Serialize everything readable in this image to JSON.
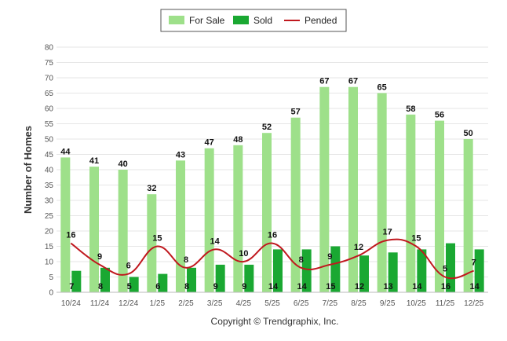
{
  "chart_data": {
    "type": "bar",
    "categories": [
      "10/24",
      "11/24",
      "12/24",
      "1/25",
      "2/25",
      "3/25",
      "4/25",
      "5/25",
      "6/25",
      "7/25",
      "8/25",
      "9/25",
      "10/25",
      "11/25",
      "12/25"
    ],
    "series": [
      {
        "name": "For Sale",
        "type": "bar",
        "color": "#9ee08a",
        "values": [
          44,
          41,
          40,
          32,
          43,
          47,
          48,
          52,
          57,
          67,
          67,
          65,
          58,
          56,
          50
        ]
      },
      {
        "name": "Sold",
        "type": "bar",
        "color": "#1aa832",
        "values": [
          7,
          8,
          5,
          6,
          8,
          9,
          9,
          14,
          14,
          15,
          12,
          13,
          14,
          16,
          14
        ]
      },
      {
        "name": "Pended",
        "type": "line",
        "color": "#c0181e",
        "values": [
          16,
          9,
          6,
          15,
          8,
          14,
          10,
          16,
          8,
          9,
          12,
          17,
          15,
          5,
          7
        ]
      }
    ],
    "ylabel": "Number of Homes",
    "xlabel": "",
    "ylim": [
      0,
      80
    ],
    "yticks": [
      0,
      5,
      10,
      15,
      20,
      25,
      30,
      35,
      40,
      45,
      50,
      55,
      60,
      65,
      70,
      75,
      80
    ],
    "grid": true,
    "legend_position": "top-center"
  },
  "footer": {
    "copyright": "Copyright © Trendgraphix, Inc."
  }
}
